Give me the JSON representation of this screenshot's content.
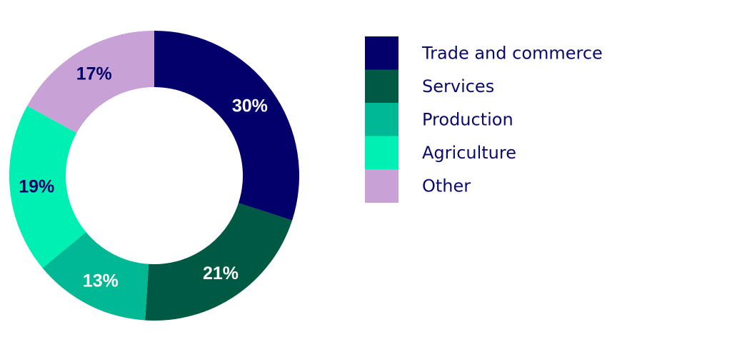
{
  "chart_data": {
    "type": "pie",
    "subtype": "donut",
    "title": "",
    "legend_position": "right",
    "slices": [
      {
        "label": "Trade and commerce",
        "value": 30,
        "display": "30%",
        "color": "#03006b",
        "label_color": "#ffffff"
      },
      {
        "label": "Services",
        "value": 21,
        "display": "21%",
        "color": "#005a43",
        "label_color": "#ffffff"
      },
      {
        "label": "Production",
        "value": 13,
        "display": "13%",
        "color": "#00b894",
        "label_color": "#ffffff"
      },
      {
        "label": "Agriculture",
        "value": 19,
        "display": "19%",
        "color": "#00f0b4",
        "label_color": "#03006b"
      },
      {
        "label": "Other",
        "value": 17,
        "display": "17%",
        "color": "#c8a2d6",
        "label_color": "#03006b"
      }
    ]
  }
}
